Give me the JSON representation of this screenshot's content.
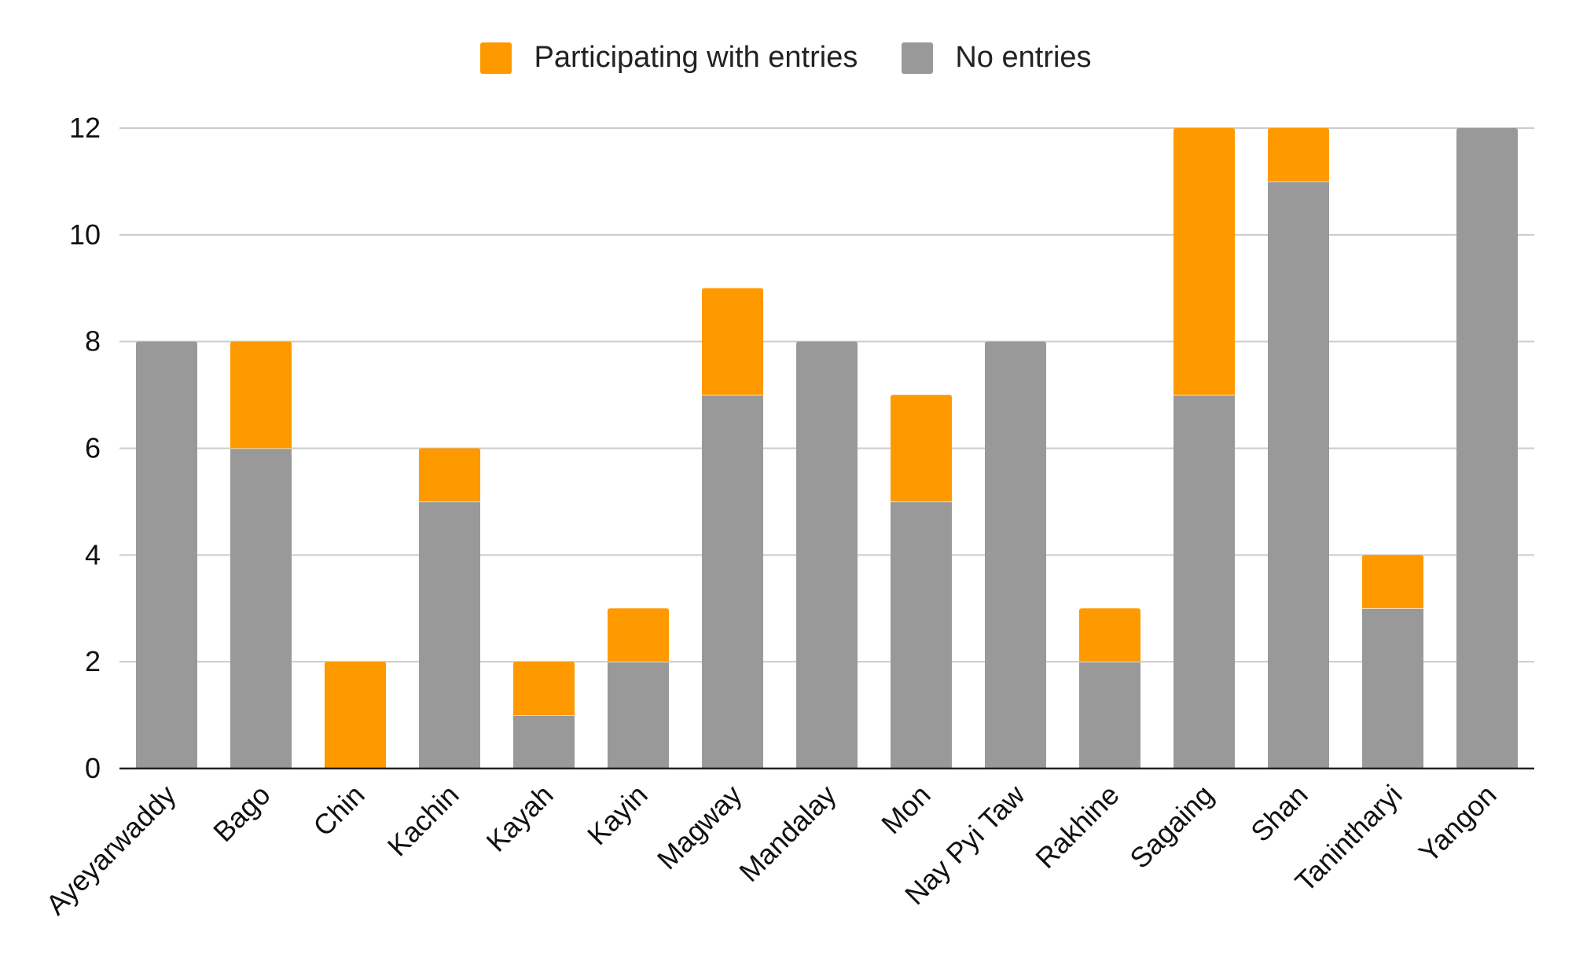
{
  "chart_data": {
    "type": "bar",
    "stacked": true,
    "title": "",
    "xlabel": "",
    "ylabel": "",
    "ylim": [
      0,
      12
    ],
    "yticks": [
      0,
      2,
      4,
      6,
      8,
      10,
      12
    ],
    "grid": true,
    "legend_position": "top-center",
    "categories": [
      "Ayeyarwaddy",
      "Bago",
      "Chin",
      "Kachin",
      "Kayah",
      "Kayin",
      "Magway",
      "Mandalay",
      "Mon",
      "Nay Pyi Taw",
      "Rakhine",
      "Sagaing",
      "Shan",
      "Tanintharyi",
      "Yangon"
    ],
    "series": [
      {
        "name": "No entries",
        "color": "#999999",
        "values": [
          8,
          6,
          0,
          5,
          1,
          2,
          7,
          8,
          5,
          8,
          2,
          7,
          11,
          3,
          12
        ]
      },
      {
        "name": "Participating with entries",
        "color": "#ff9900",
        "values": [
          0,
          2,
          2,
          1,
          1,
          1,
          2,
          0,
          2,
          0,
          1,
          5,
          1,
          1,
          0
        ]
      }
    ]
  }
}
